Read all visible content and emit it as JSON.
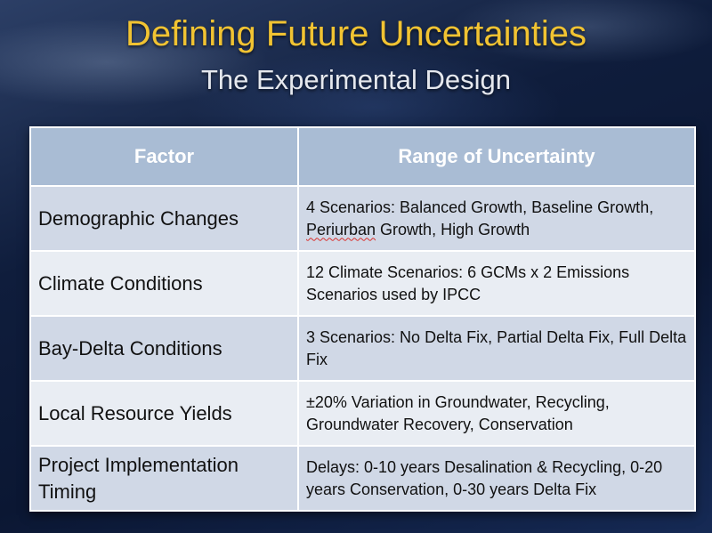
{
  "slide": {
    "title": "Defining Future Uncertainties",
    "subtitle": "The Experimental Design"
  },
  "table": {
    "headers": [
      "Factor",
      "Range of Uncertainty"
    ],
    "rows": [
      {
        "factor": "Demographic Changes",
        "range_before": "4 Scenarios: Balanced Growth, Baseline Growth, ",
        "range_flagged": "Periurban",
        "range_after": " Growth, High Growth"
      },
      {
        "factor": "Climate Conditions",
        "range": "12 Climate Scenarios: 6 GCMs x 2 Emissions Scenarios used by IPCC"
      },
      {
        "factor": "Bay-Delta Conditions",
        "range": "3 Scenarios: No Delta Fix, Partial Delta Fix, Full Delta Fix"
      },
      {
        "factor": "Local Resource Yields",
        "range": "±20% Variation in Groundwater, Recycling, Groundwater Recovery, Conservation"
      },
      {
        "factor": "Project Implementation Timing",
        "range": "Delays: 0-10 years Desalination & Recycling, 0-20 years Conservation, 0-30 years Delta Fix"
      }
    ]
  },
  "colors": {
    "title": "#f1c332",
    "subtitle": "#e5e8ee",
    "header_bg": "#a9bcd4",
    "row_dark": "#d0d8e6",
    "row_light": "#e9edf3",
    "spellcheck_underline": "#d9302c"
  }
}
